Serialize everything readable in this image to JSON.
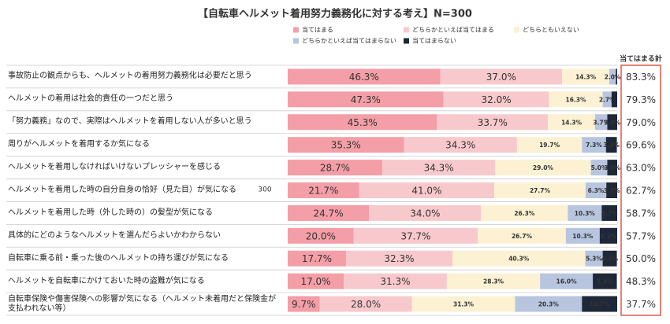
{
  "chart_data": {
    "type": "stacked-bar-horizontal",
    "title": "【自転車ヘルメット着用努力義務化に対する考え】N=300",
    "annotation": "300",
    "xlim": [
      0,
      100
    ],
    "legend_position": "top",
    "categories": [
      "事故防止の観点からも、ヘルメットの着用努力義務化は必要だと思う",
      "ヘルメットの着用は社会的責任の一つだと思う",
      "「努力義務」なので、実際はヘルメットを着用しない人が多いと思う",
      "周りがヘルメットを着用するか気になる",
      "ヘルメットを着用しなければいけないプレッシャーを感じる",
      "ヘルメットを着用した時の自分自身の恰好（見た目）が気になる",
      "ヘルメットを着用した時（外した時の）の髪型が気になる",
      "具体的にどのようなヘルメットを選んだらよいかわからない",
      "自転車に乗る前・乗った後のヘルメットの持ち運びが気になる",
      "ヘルメットを自転車にかけておいた時の盗難が気になる",
      "自転車保険や傷害保険への影響が気になる（ヘルメット未着用だと保険金が支払われない等）"
    ],
    "series": [
      {
        "name": "当てはまる",
        "color": "#f49ea7",
        "values": [
          46.3,
          47.3,
          45.3,
          35.3,
          28.7,
          21.7,
          24.7,
          20.0,
          17.7,
          17.0,
          9.7
        ],
        "value_labels": [
          "46.3%",
          "47.3%",
          "45.3%",
          "35.3%",
          "28.7%",
          "21.7%",
          "24.7%",
          "20.0%",
          "17.7%",
          "17.0%",
          "9.7%"
        ]
      },
      {
        "name": "どちらかといえば当てはまる",
        "color": "#f8c9cc",
        "values": [
          37.0,
          32.0,
          33.7,
          34.3,
          34.3,
          41.0,
          34.0,
          37.7,
          32.3,
          31.3,
          28.0
        ],
        "value_labels": [
          "37.0%",
          "32.0%",
          "33.7%",
          "34.3%",
          "34.3%",
          "41.0%",
          "34.0%",
          "37.7%",
          "32.3%",
          "31.3%",
          "28.0%"
        ]
      },
      {
        "name": "どちらともいえない",
        "color": "#fdf1d3",
        "values": [
          14.3,
          16.3,
          14.3,
          19.7,
          29.0,
          27.7,
          26.3,
          26.7,
          40.3,
          28.3,
          31.3
        ],
        "value_labels": [
          "14.3%",
          "16.3%",
          "14.3%",
          "19.7%",
          "29.0%",
          "27.7%",
          "26.3%",
          "26.7%",
          "40.3%",
          "28.3%",
          "31.3%"
        ]
      },
      {
        "name": "どちらかといえば当てはまらない",
        "color": "#b7c5df",
        "values": [
          2.0,
          2.7,
          3.7,
          7.3,
          5.0,
          6.3,
          10.3,
          10.3,
          5.3,
          16.0,
          20.3
        ],
        "value_labels": [
          "2.0%",
          "2.7%",
          "3.7%",
          "7.3%",
          "5.0%",
          "6.3%",
          "10.3%",
          "10.3%",
          "5.3%",
          "16.0%",
          "20.3%"
        ]
      },
      {
        "name": "当てはまらない",
        "color": "#1f2838",
        "values": [
          0.4,
          1.7,
          3.0,
          3.3,
          3.0,
          3.3,
          4.7,
          5.3,
          4.3,
          7.3,
          10.7
        ],
        "value_labels": [
          null,
          null,
          "3.0%",
          "3.3%",
          "3.0%",
          "3.3%",
          "4.7%",
          "5.3%",
          "4.3%",
          "7.3%",
          "10.7%"
        ]
      }
    ],
    "totals": {
      "name": "当てはまる計",
      "color": "#e05a4a",
      "values": [
        83.3,
        79.3,
        79.0,
        69.6,
        63.0,
        62.7,
        58.7,
        57.7,
        50.0,
        48.3,
        37.7
      ],
      "value_labels": [
        "83.3%",
        "79.3%",
        "79.0%",
        "69.6%",
        "63.0%",
        "62.7%",
        "58.7%",
        "57.7%",
        "50.0%",
        "48.3%",
        "37.7%"
      ]
    }
  }
}
